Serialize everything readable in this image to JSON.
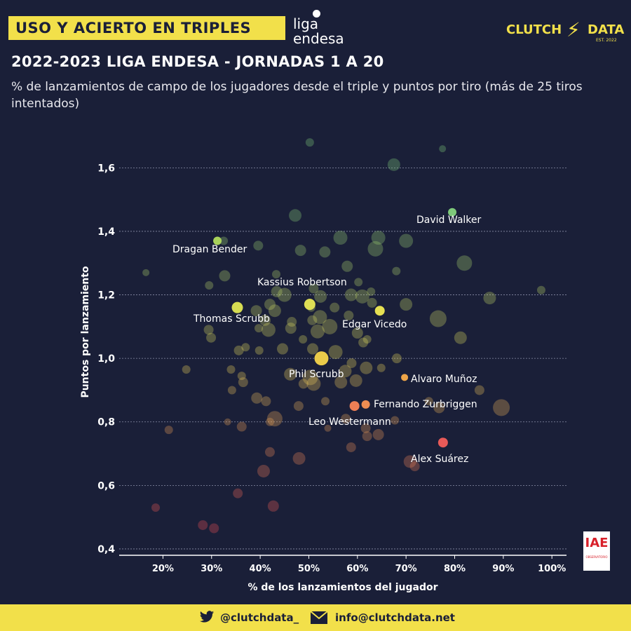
{
  "header": {
    "title": "USO Y ACIERTO EN TRIPLES",
    "liga_line1": "liga",
    "liga_line2": "endesa",
    "brand_left": "CLUTCH",
    "brand_right": "DATA",
    "brand_est": "EST. 2022",
    "subtitle": "2022-2023 LIGA ENDESA - JORNADAS 1 A 20",
    "description": "% de lanzamientos de campo de los jugadores desde el triple y puntos por tiro (más de 25 tiros intentados)"
  },
  "badge": {
    "text": "IAE",
    "sub": "OBSERVATORIO"
  },
  "footer": {
    "twitter": "@clutchdata_",
    "email": "info@clutchdata.net"
  },
  "colors": {
    "background": "#1a1f38",
    "accent": "#f2e04a",
    "high": "#7ec97a",
    "mid": "#e8d85a",
    "low": "#e84f55",
    "grid": "#8a8fa8"
  },
  "chart_data": {
    "type": "scatter",
    "xlabel": "% de los lanzamientos del jugador",
    "ylabel": "Puntos por lanzamiento",
    "xlim": [
      11,
      103
    ],
    "ylim": [
      0.38,
      1.72
    ],
    "xticks": [
      20,
      30,
      40,
      50,
      60,
      70,
      80,
      90,
      100
    ],
    "xtick_labels": [
      "20%",
      "30%",
      "40%",
      "50%",
      "60%",
      "70%",
      "80%",
      "90%",
      "100%"
    ],
    "yticks": [
      0.4,
      0.6,
      0.8,
      1.0,
      1.2,
      1.4,
      1.6
    ],
    "ytick_labels": [
      "0,4",
      "0,6",
      "0,8",
      "1,0",
      "1,2",
      "1,4",
      "1,6"
    ],
    "grid": "horizontal",
    "highlighted": [
      {
        "name": "David Walker",
        "x": 79.5,
        "y": 1.46,
        "size": 6,
        "color": "#7ec97a"
      },
      {
        "name": "Dragan  Bender",
        "x": 31.2,
        "y": 1.37,
        "size": 6,
        "color": "#a8d25a"
      },
      {
        "name": "Kassius Robertson",
        "x": 50.2,
        "y": 1.17,
        "size": 8,
        "color": "#dede55"
      },
      {
        "name": "Thomas Scrubb",
        "x": 35.3,
        "y": 1.16,
        "size": 8,
        "color": "#d6dc52"
      },
      {
        "name": "Edgar Vicedo",
        "x": 64.6,
        "y": 1.15,
        "size": 7,
        "color": "#e6e052"
      },
      {
        "name": "Phil Scrubb",
        "x": 52.6,
        "y": 1.0,
        "size": 10,
        "color": "#eacb4a"
      },
      {
        "name": "Alvaro Muñoz",
        "x": 69.7,
        "y": 0.94,
        "size": 5,
        "color": "#eea548"
      },
      {
        "name": "Fernando Zurbriggen",
        "x": 61.7,
        "y": 0.855,
        "size": 6,
        "color": "#ee8d52"
      },
      {
        "name": "Leo Westermann",
        "x": 59.4,
        "y": 0.85,
        "size": 7,
        "color": "#ee7f55"
      },
      {
        "name": "Alex Suárez",
        "x": 77.6,
        "y": 0.735,
        "size": 7,
        "color": "#e85a58"
      }
    ],
    "others": [
      [
        50.2,
        1.68,
        6
      ],
      [
        77.5,
        1.66,
        5
      ],
      [
        67.5,
        1.61,
        9
      ],
      [
        47.2,
        1.45,
        9
      ],
      [
        32.5,
        1.37,
        6
      ],
      [
        56.5,
        1.38,
        10
      ],
      [
        64.3,
        1.38,
        10
      ],
      [
        70.0,
        1.37,
        10
      ],
      [
        39.6,
        1.355,
        7
      ],
      [
        48.3,
        1.34,
        8
      ],
      [
        53.3,
        1.335,
        8
      ],
      [
        63.7,
        1.345,
        11
      ],
      [
        82.0,
        1.3,
        11
      ],
      [
        57.9,
        1.29,
        8
      ],
      [
        16.5,
        1.27,
        5
      ],
      [
        43.3,
        1.265,
        6
      ],
      [
        32.7,
        1.26,
        8
      ],
      [
        68.0,
        1.275,
        6
      ],
      [
        29.5,
        1.23,
        6
      ],
      [
        60.2,
        1.24,
        6
      ],
      [
        51.0,
        1.22,
        7
      ],
      [
        43.4,
        1.21,
        8
      ],
      [
        45.0,
        1.2,
        10
      ],
      [
        52.4,
        1.195,
        9
      ],
      [
        58.7,
        1.2,
        9
      ],
      [
        61.0,
        1.195,
        10
      ],
      [
        62.8,
        1.21,
        6
      ],
      [
        87.2,
        1.19,
        9
      ],
      [
        97.8,
        1.215,
        6
      ],
      [
        42.0,
        1.17,
        8
      ],
      [
        50.5,
        1.16,
        6
      ],
      [
        55.3,
        1.16,
        7
      ],
      [
        63.0,
        1.175,
        7
      ],
      [
        70.0,
        1.17,
        9
      ],
      [
        39.2,
        1.15,
        8
      ],
      [
        43.0,
        1.15,
        9
      ],
      [
        52.3,
        1.13,
        10
      ],
      [
        58.2,
        1.135,
        7
      ],
      [
        76.6,
        1.125,
        12
      ],
      [
        41.0,
        1.12,
        8
      ],
      [
        46.5,
        1.115,
        7
      ],
      [
        50.7,
        1.12,
        7
      ],
      [
        54.3,
        1.1,
        11
      ],
      [
        29.4,
        1.09,
        7
      ],
      [
        39.7,
        1.095,
        6
      ],
      [
        41.7,
        1.09,
        10
      ],
      [
        46.3,
        1.095,
        8
      ],
      [
        51.8,
        1.085,
        10
      ],
      [
        60.0,
        1.08,
        8
      ],
      [
        62.0,
        1.06,
        6
      ],
      [
        29.9,
        1.065,
        7
      ],
      [
        48.8,
        1.06,
        6
      ],
      [
        61.2,
        1.05,
        7
      ],
      [
        37.0,
        1.035,
        6
      ],
      [
        39.8,
        1.025,
        6
      ],
      [
        35.6,
        1.025,
        7
      ],
      [
        44.6,
        1.03,
        8
      ],
      [
        50.8,
        1.03,
        8
      ],
      [
        55.5,
        1.02,
        10
      ],
      [
        81.2,
        1.065,
        9
      ],
      [
        68.1,
        1.0,
        7
      ],
      [
        24.8,
        0.965,
        6
      ],
      [
        34.0,
        0.965,
        6
      ],
      [
        46.2,
        0.95,
        9
      ],
      [
        57.5,
        0.96,
        9
      ],
      [
        58.8,
        0.985,
        7
      ],
      [
        61.8,
        0.97,
        9
      ],
      [
        64.9,
        0.97,
        6
      ],
      [
        36.2,
        0.945,
        6
      ],
      [
        36.5,
        0.925,
        7
      ],
      [
        48.9,
        0.92,
        7
      ],
      [
        51.0,
        0.92,
        10
      ],
      [
        56.6,
        0.925,
        9
      ],
      [
        59.7,
        0.93,
        9
      ],
      [
        50.3,
        0.94,
        11
      ],
      [
        34.2,
        0.9,
        6
      ],
      [
        85.1,
        0.9,
        7
      ],
      [
        39.3,
        0.875,
        8
      ],
      [
        41.2,
        0.865,
        7
      ],
      [
        47.9,
        0.85,
        7
      ],
      [
        53.4,
        0.865,
        6
      ],
      [
        74.7,
        0.865,
        6
      ],
      [
        76.8,
        0.845,
        8
      ],
      [
        89.6,
        0.845,
        12
      ],
      [
        43.0,
        0.81,
        11
      ],
      [
        42.0,
        0.8,
        6
      ],
      [
        33.3,
        0.8,
        5
      ],
      [
        36.2,
        0.785,
        7
      ],
      [
        21.2,
        0.775,
        6
      ],
      [
        53.9,
        0.78,
        5
      ],
      [
        57.6,
        0.81,
        7
      ],
      [
        61.7,
        0.78,
        7
      ],
      [
        62.0,
        0.755,
        7
      ],
      [
        64.3,
        0.76,
        8
      ],
      [
        67.7,
        0.805,
        6
      ],
      [
        58.7,
        0.72,
        7
      ],
      [
        42.0,
        0.705,
        7
      ],
      [
        48.0,
        0.685,
        9
      ],
      [
        70.8,
        0.675,
        9
      ],
      [
        71.8,
        0.66,
        7
      ],
      [
        40.7,
        0.645,
        9
      ],
      [
        35.4,
        0.575,
        7
      ],
      [
        42.7,
        0.535,
        8
      ],
      [
        18.5,
        0.53,
        6
      ],
      [
        28.2,
        0.475,
        7
      ],
      [
        30.5,
        0.465,
        7
      ]
    ]
  }
}
